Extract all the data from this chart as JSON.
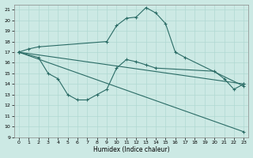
{
  "bg_color": "#cce9e4",
  "line_color": "#2a6b65",
  "grid_color": "#b0d8d2",
  "xlabel": "Humidex (Indice chaleur)",
  "xlim": [
    -0.5,
    23.5
  ],
  "ylim": [
    9,
    21.5
  ],
  "yticks": [
    9,
    10,
    11,
    12,
    13,
    14,
    15,
    16,
    17,
    18,
    19,
    20,
    21
  ],
  "xticks": [
    0,
    1,
    2,
    3,
    4,
    5,
    6,
    7,
    8,
    9,
    10,
    11,
    12,
    13,
    14,
    15,
    16,
    17,
    18,
    19,
    20,
    21,
    22,
    23
  ],
  "line1_x": [
    0,
    1,
    2,
    9,
    10,
    11,
    12,
    13,
    14,
    15,
    16,
    17,
    23
  ],
  "line1_y": [
    17.0,
    17.3,
    17.5,
    18.0,
    19.5,
    20.2,
    20.3,
    21.2,
    20.7,
    19.7,
    17.0,
    16.5,
    13.8
  ],
  "line2_x": [
    0,
    2,
    3,
    4,
    5,
    6,
    7,
    8,
    9,
    10,
    11,
    12,
    13,
    14,
    20,
    21,
    22,
    23
  ],
  "line2_y": [
    17.0,
    16.5,
    15.0,
    14.5,
    13.0,
    12.5,
    12.5,
    13.0,
    13.5,
    15.5,
    16.3,
    16.1,
    15.8,
    15.5,
    15.2,
    14.5,
    13.5,
    14.0
  ],
  "line3_x": [
    0,
    23
  ],
  "line3_y": [
    17.0,
    14.0
  ],
  "line4_x": [
    0,
    23
  ],
  "line4_y": [
    17.0,
    9.5
  ]
}
